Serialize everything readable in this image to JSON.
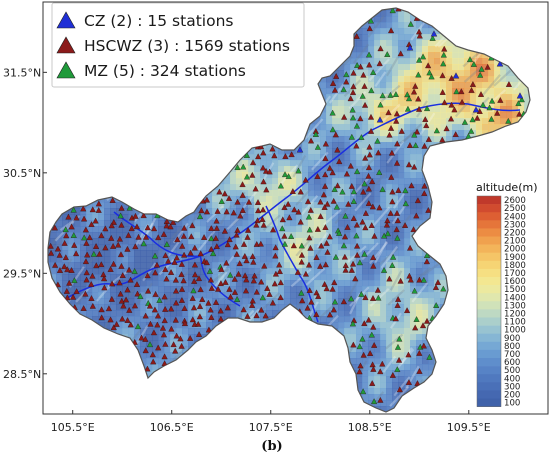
{
  "map": {
    "caption": "(b)",
    "latitude_ticks": [
      {
        "value": 31.5,
        "label": "31.5°N"
      },
      {
        "value": 30.5,
        "label": "30.5°N"
      },
      {
        "value": 29.5,
        "label": "29.5°N"
      },
      {
        "value": 28.5,
        "label": "28.5°N"
      }
    ],
    "longitude_ticks": [
      {
        "value": 105.5,
        "label": "105.5°E"
      },
      {
        "value": 106.5,
        "label": "106.5°E"
      },
      {
        "value": 107.5,
        "label": "107.5°E"
      },
      {
        "value": 108.5,
        "label": "108.5°E"
      },
      {
        "value": 109.5,
        "label": "109.5°E"
      }
    ],
    "lon_range": [
      105.2,
      110.3
    ],
    "lat_range": [
      28.1,
      32.2
    ]
  },
  "legend": {
    "placement": "top-left",
    "items": [
      {
        "label": "CZ (2) : 15 stations",
        "color": "#1f2fd6",
        "icon": "triangle-icon",
        "count": 15
      },
      {
        "label": "HSCWZ (3) : 1569 stations",
        "color": "#8b1a1a",
        "icon": "triangle-icon",
        "count": 1569
      },
      {
        "label": "MZ (5) : 324 stations",
        "color": "#1f9a3a",
        "icon": "triangle-icon",
        "count": 324
      }
    ]
  },
  "colorbar": {
    "title": "altitude(m)",
    "ticks": [
      "2600",
      "2500",
      "2400",
      "2300",
      "2200",
      "2100",
      "2000",
      "1900",
      "1800",
      "1700",
      "1600",
      "1500",
      "1400",
      "1300",
      "1200",
      "1100",
      "1000",
      "900",
      "800",
      "700",
      "600",
      "500",
      "400",
      "300",
      "200",
      "100"
    ],
    "colors": [
      "#c0392b",
      "#d14b2f",
      "#dd5f33",
      "#e5753a",
      "#ec8c43",
      "#f0a14e",
      "#f3b45a",
      "#f5c567",
      "#f6d474",
      "#f6df82",
      "#f3e791",
      "#ece99f",
      "#e0e7ad",
      "#d0e2b9",
      "#bed9c3",
      "#abcfcb",
      "#98c3d1",
      "#86b6d4",
      "#76a8d4",
      "#699bd1",
      "#5f8ecc",
      "#5783c6",
      "#5079bf",
      "#4a70b8",
      "#4568b1",
      "#4062aa"
    ]
  }
}
